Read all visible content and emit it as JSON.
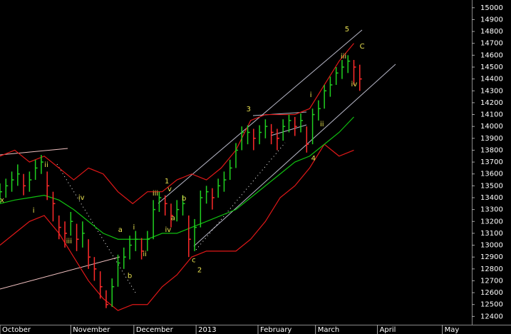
{
  "chart_data": {
    "type": "ohlc",
    "x": [
      0,
      2,
      4,
      6,
      8,
      10,
      12,
      14,
      16,
      18,
      20,
      22,
      24,
      26,
      28,
      30,
      32,
      34,
      36,
      38,
      40,
      42,
      44,
      46,
      48,
      50,
      52,
      54,
      56,
      58,
      60,
      62,
      64,
      66,
      68,
      70,
      72,
      74,
      76,
      78,
      80,
      82,
      84,
      86,
      88,
      90,
      92,
      94,
      96,
      98,
      100,
      102,
      104,
      106,
      108,
      110,
      112,
      114,
      116,
      118,
      120,
      122
    ],
    "high": [
      13520,
      13560,
      13620,
      13680,
      13600,
      13620,
      13720,
      13760,
      13620,
      13450,
      13250,
      13200,
      13280,
      13180,
      13200,
      13050,
      12900,
      12780,
      12620,
      12720,
      12920,
      12980,
      13080,
      13120,
      13060,
      13120,
      13380,
      13450,
      13420,
      13350,
      13380,
      13420,
      13250,
      13220,
      13460,
      13500,
      13480,
      13560,
      13620,
      13720,
      13860,
      14000,
      14010,
      13980,
      14010,
      14060,
      14020,
      13980,
      14060,
      14100,
      14080,
      14110,
      14000,
      14150,
      14220,
      14350,
      14420,
      14500,
      14560,
      14600,
      14560,
      14520
    ],
    "low": [
      13350,
      13400,
      13450,
      13500,
      13420,
      13450,
      13550,
      13600,
      13380,
      13200,
      13050,
      12980,
      13080,
      12950,
      12980,
      12800,
      12700,
      12550,
      12470,
      12480,
      12650,
      12800,
      12880,
      12950,
      12880,
      12950,
      13050,
      13280,
      13250,
      13150,
      13200,
      13250,
      12900,
      12950,
      13150,
      13350,
      13300,
      13400,
      13450,
      13550,
      13650,
      13800,
      13850,
      13800,
      13850,
      13900,
      13850,
      13800,
      13880,
      13950,
      13920,
      13950,
      13780,
      13850,
      14050,
      14150,
      14250,
      14350,
      14400,
      14450,
      14350,
      14300
    ],
    "close": [
      13450,
      13500,
      13550,
      13600,
      13500,
      13550,
      13650,
      13700,
      13500,
      13350,
      13150,
      13100,
      13200,
      13050,
      13100,
      12900,
      12800,
      12650,
      12500,
      12650,
      12850,
      12900,
      13000,
      13050,
      12950,
      13050,
      13300,
      13400,
      13350,
      13250,
      13300,
      13350,
      13050,
      13150,
      13400,
      13450,
      13400,
      13500,
      13550,
      13650,
      13800,
      13950,
      13950,
      13900,
      13950,
      14000,
      13950,
      13900,
      14000,
      14050,
      14000,
      14050,
      13850,
      14100,
      14150,
      14300,
      14350,
      14450,
      14500,
      14550,
      14500,
      14400
    ],
    "up_color": "#20d020",
    "down_color": "#ff2a2a",
    "overlays": [
      {
        "color": "#e01818",
        "x": [
          0,
          5,
          10,
          15,
          20,
          25,
          30,
          35,
          40,
          45,
          50,
          55,
          60,
          65,
          70,
          75,
          80,
          85,
          90,
          95,
          100,
          105,
          110,
          115,
          120
        ],
        "values": [
          13750,
          13800,
          13700,
          13750,
          13650,
          13550,
          13650,
          13600,
          13450,
          13350,
          13450,
          13450,
          13550,
          13600,
          13550,
          13650,
          13800,
          14050,
          14100,
          14100,
          14100,
          14150,
          14350,
          14550,
          14700
        ]
      },
      {
        "color": "#e01818",
        "x": [
          0,
          5,
          10,
          15,
          20,
          25,
          30,
          35,
          40,
          45,
          50,
          55,
          60,
          65,
          70,
          75,
          80,
          85,
          90,
          95,
          100,
          105,
          110,
          115,
          120
        ],
        "values": [
          13000,
          13100,
          13200,
          13250,
          13100,
          12900,
          12700,
          12550,
          12450,
          12500,
          12500,
          12650,
          12750,
          12900,
          12950,
          12950,
          12950,
          13050,
          13200,
          13400,
          13500,
          13650,
          13850,
          13750,
          13800
        ]
      },
      {
        "color": "#10c010",
        "x": [
          0,
          5,
          10,
          15,
          20,
          25,
          30,
          35,
          40,
          45,
          50,
          55,
          60,
          65,
          70,
          75,
          80,
          85,
          90,
          95,
          100,
          105,
          110,
          115,
          120
        ],
        "values": [
          13350,
          13380,
          13400,
          13420,
          13380,
          13300,
          13200,
          13100,
          13050,
          13050,
          13050,
          13100,
          13100,
          13150,
          13200,
          13250,
          13300,
          13400,
          13500,
          13600,
          13700,
          13750,
          13850,
          13950,
          14080
        ]
      }
    ],
    "annotation_color": "#e8e050",
    "annotations": [
      {
        "text": "5",
        "x": 117.7,
        "y": 14820
      },
      {
        "text": "C",
        "x": 122.8,
        "y": 14675
      },
      {
        "text": "iii",
        "x": 116.5,
        "y": 14590
      },
      {
        "text": "iv",
        "x": 120.1,
        "y": 14355
      },
      {
        "text": "i",
        "x": 105.4,
        "y": 14265
      },
      {
        "text": "ii",
        "x": 109.2,
        "y": 14019
      },
      {
        "text": "3",
        "x": 84.3,
        "y": 14145
      },
      {
        "text": "4",
        "x": 106.3,
        "y": 13730
      },
      {
        "text": "1",
        "x": 56.6,
        "y": 13538
      },
      {
        "text": "v",
        "x": 57.5,
        "y": 13472
      },
      {
        "text": "iii",
        "x": 52.7,
        "y": 13436
      },
      {
        "text": "b",
        "x": 62.4,
        "y": 13394
      },
      {
        "text": "a",
        "x": 58.7,
        "y": 13230
      },
      {
        "text": "iv",
        "x": 57.0,
        "y": 13128
      },
      {
        "text": "a",
        "x": 40.8,
        "y": 13128
      },
      {
        "text": "i",
        "x": 45.4,
        "y": 13152
      },
      {
        "text": "ii",
        "x": 49.1,
        "y": 12924
      },
      {
        "text": "b",
        "x": 44.0,
        "y": 12742
      },
      {
        "text": "c",
        "x": 65.7,
        "y": 12875
      },
      {
        "text": "2",
        "x": 67.7,
        "y": 12790
      },
      {
        "text": "iv",
        "x": 27.6,
        "y": 13399
      },
      {
        "text": "ii",
        "x": 15.7,
        "y": 13676
      },
      {
        "text": "i",
        "x": 11.4,
        "y": 13291
      },
      {
        "text": "iii",
        "x": 23.4,
        "y": 13032
      },
      {
        "text": "x",
        "x": 0.7,
        "y": 13380
      }
    ],
    "xlim": [
      0,
      160
    ],
    "xticks": [
      {
        "value": 0,
        "label": "October"
      },
      {
        "value": 24,
        "label": "November"
      },
      {
        "value": 45.4,
        "label": "December"
      },
      {
        "value": 66.5,
        "label": "2013"
      },
      {
        "value": 87.5,
        "label": "February"
      },
      {
        "value": 107,
        "label": "March"
      },
      {
        "value": 128,
        "label": "April"
      },
      {
        "value": 150,
        "label": "May"
      }
    ],
    "ylim": [
      12330,
      15065
    ],
    "yticks": [
      12400,
      12500,
      12600,
      12700,
      12800,
      12900,
      13000,
      13100,
      13200,
      13300,
      13400,
      13500,
      13600,
      13700,
      13800,
      13900,
      14000,
      14100,
      14200,
      14300,
      14400,
      14500,
      14600,
      14700,
      14800,
      14900,
      15000
    ]
  }
}
